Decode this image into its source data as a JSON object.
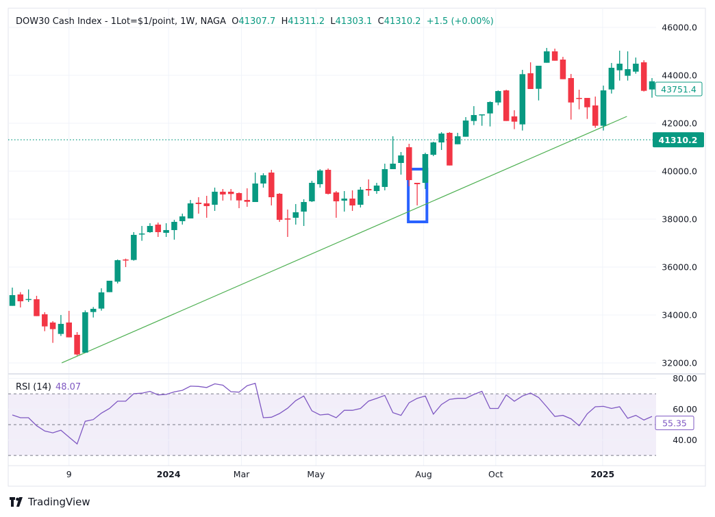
{
  "header": {
    "title": "DOW30 Cash Index - 1Lot=$1/point, 1W, NAGA",
    "o_label": "O",
    "o_value": "41307.7",
    "h_label": "H",
    "h_value": "41311.2",
    "l_label": "L",
    "l_value": "41303.1",
    "c_label": "C",
    "c_value": "41310.2",
    "change": "+1.5 (+0.00%)"
  },
  "colors": {
    "up": "#089981",
    "down": "#f23645",
    "rsi": "#7e57c2",
    "trendline": "#4caf50",
    "rectangle": "#2962ff",
    "grid": "#f0f3fa"
  },
  "branding": {
    "logo_text": "TradingView",
    "logo_icon": "tradingview-logo-icon"
  },
  "chart_data": {
    "type": "candlestick",
    "title": "DOW30 Cash Index - 1Lot=$1/point, 1W, NAGA",
    "ylim": [
      31571,
      47143
    ],
    "yticks": [
      "46000.0",
      "44000.0",
      "42000.0",
      "40000.0",
      "38000.0",
      "36000.0",
      "34000.0",
      "32000.0"
    ],
    "xticks": [
      {
        "label": "9",
        "index": 7.0,
        "bold": false
      },
      {
        "label": "2024",
        "index": 19.3,
        "bold": true
      },
      {
        "label": "Mar",
        "index": 28.3,
        "bold": false
      },
      {
        "label": "May",
        "index": 37.5,
        "bold": false
      },
      {
        "label": "Aug",
        "index": 50.8,
        "bold": false
      },
      {
        "label": "Oct",
        "index": 59.7,
        "bold": false
      },
      {
        "label": "2025",
        "index": 72.9,
        "bold": true
      }
    ],
    "grid": true,
    "current_price_line": {
      "price": 41310.2,
      "label": "41310.2"
    },
    "last_close_label": {
      "price": 43751.4,
      "label": "43751.4"
    },
    "trendline": {
      "start": {
        "index": 6.1,
        "price": 32000
      },
      "end": {
        "index": 75.9,
        "price": 42286
      }
    },
    "rectangle": {
      "start_index": 48.9,
      "end_index": 51.2,
      "top": 40086,
      "bottom": 37886
    },
    "candles": [
      [
        34381,
        35143,
        34381,
        34829
      ],
      [
        34857,
        34953,
        34315,
        34572
      ],
      [
        34629,
        35067,
        34543,
        34667
      ],
      [
        34657,
        34800,
        33953,
        33953
      ],
      [
        34029,
        34114,
        33324,
        33524
      ],
      [
        33686,
        33743,
        32838,
        33410
      ],
      [
        33210,
        34000,
        33124,
        33629
      ],
      [
        33686,
        34172,
        33067,
        33067
      ],
      [
        33172,
        33286,
        32305,
        32353
      ],
      [
        32429,
        34191,
        32429,
        34114
      ],
      [
        34124,
        34333,
        33895,
        34257
      ],
      [
        34267,
        35115,
        34181,
        34943
      ],
      [
        34953,
        35429,
        34953,
        35429
      ],
      [
        35391,
        36315,
        35315,
        36286
      ],
      [
        36315,
        36353,
        36000,
        36286
      ],
      [
        36296,
        37457,
        36267,
        37343
      ],
      [
        37362,
        37715,
        37096,
        37400
      ],
      [
        37457,
        37829,
        37429,
        37715
      ],
      [
        37772,
        37857,
        37257,
        37457
      ],
      [
        37429,
        37829,
        37257,
        37543
      ],
      [
        37543,
        37972,
        37143,
        37886
      ],
      [
        37915,
        38229,
        37772,
        38114
      ],
      [
        38029,
        38800,
        38029,
        38657
      ],
      [
        38686,
        38915,
        38229,
        38629
      ],
      [
        38657,
        38972,
        38057,
        38543
      ],
      [
        38600,
        39315,
        38343,
        39143
      ],
      [
        39143,
        39257,
        38772,
        39029
      ],
      [
        39143,
        39257,
        38781,
        39048
      ],
      [
        39086,
        39114,
        38457,
        38781
      ],
      [
        38800,
        39286,
        38514,
        38724
      ],
      [
        38714,
        39943,
        38714,
        39486
      ],
      [
        39486,
        39914,
        39314,
        39829
      ],
      [
        39943,
        40057,
        38571,
        38914
      ],
      [
        39057,
        39086,
        37886,
        37971
      ],
      [
        38029,
        38400,
        37257,
        37981
      ],
      [
        38057,
        38629,
        37771,
        38286
      ],
      [
        38314,
        38829,
        37714,
        38714
      ],
      [
        38743,
        39600,
        38714,
        39514
      ],
      [
        39457,
        40086,
        39314,
        40029
      ],
      [
        40057,
        40114,
        39029,
        39057
      ],
      [
        39114,
        39171,
        38057,
        38743
      ],
      [
        38771,
        39171,
        38314,
        38857
      ],
      [
        38857,
        39200,
        38343,
        38571
      ],
      [
        38600,
        39343,
        38486,
        39229
      ],
      [
        39257,
        39657,
        38971,
        39200
      ],
      [
        39171,
        39514,
        39057,
        39400
      ],
      [
        39343,
        40314,
        39200,
        40086
      ],
      [
        40086,
        41457,
        40086,
        40314
      ],
      [
        40343,
        40800,
        39857,
        40657
      ],
      [
        41000,
        41143,
        39371,
        39629
      ],
      [
        39514,
        39514,
        38571,
        39457
      ],
      [
        39514,
        40771,
        39257,
        40714
      ],
      [
        40686,
        41229,
        40629,
        41200
      ],
      [
        41200,
        41629,
        40886,
        41571
      ],
      [
        41600,
        41629,
        40238,
        40238
      ],
      [
        41124,
        41600,
        41124,
        41457
      ],
      [
        41438,
        42257,
        41438,
        42114
      ],
      [
        42095,
        42715,
        41924,
        42343
      ],
      [
        42352,
        42371,
        41895,
        42371
      ],
      [
        42410,
        42914,
        41867,
        42886
      ],
      [
        42867,
        43372,
        42753,
        43343
      ],
      [
        43372,
        43400,
        42095,
        42095
      ],
      [
        42286,
        42543,
        41753,
        42067
      ],
      [
        41953,
        44229,
        41696,
        44048
      ],
      [
        44086,
        44543,
        43429,
        43429
      ],
      [
        43438,
        44400,
        42953,
        44400
      ],
      [
        44524,
        45143,
        44524,
        45000
      ],
      [
        45000,
        45114,
        44610,
        44610
      ],
      [
        44657,
        44771,
        43838,
        43838
      ],
      [
        43886,
        44057,
        42153,
        42867
      ],
      [
        43057,
        43400,
        42581,
        43019
      ],
      [
        43057,
        43057,
        42181,
        42667
      ],
      [
        42743,
        43114,
        41810,
        41896
      ],
      [
        41896,
        43572,
        41696,
        43372
      ],
      [
        43410,
        44515,
        43239,
        44314
      ],
      [
        44210,
        45029,
        43781,
        44486
      ],
      [
        43981,
        45000,
        43781,
        44257
      ],
      [
        44153,
        44743,
        44067,
        44486
      ],
      [
        44543,
        44629,
        43324,
        43353
      ],
      [
        43410,
        43886,
        43067,
        43751.4
      ]
    ],
    "rsi": {
      "label": "RSI (14)",
      "value": "48.07",
      "axis_label": "55.35",
      "ylim": [
        23.4,
        82.5
      ],
      "levels": [
        70,
        50,
        30
      ],
      "yticks": [
        {
          "label": "80.00",
          "value": 80
        },
        {
          "label": "60.00",
          "value": 60
        },
        {
          "label": "40.00",
          "value": 40
        }
      ],
      "values": [
        56.3,
        54.5,
        54.5,
        49.3,
        45.9,
        44.7,
        46.4,
        41.9,
        37.5,
        52.2,
        53.3,
        57.5,
        60.5,
        65.2,
        65.2,
        70.1,
        70.4,
        71.6,
        69.3,
        69.6,
        71.3,
        72.3,
        75.0,
        74.8,
        74.1,
        76.5,
        75.6,
        71.4,
        71.1,
        75.3,
        76.8,
        54.5,
        54.8,
        57.2,
        60.7,
        65.6,
        68.6,
        59.0,
        56.3,
        56.8,
        54.5,
        59.3,
        59.3,
        60.5,
        65.3,
        67.1,
        69.0,
        57.8,
        56.0,
        64.2,
        67.1,
        68.6,
        56.8,
        63.1,
        66.4,
        67.1,
        67.1,
        69.6,
        71.6,
        60.5,
        60.5,
        69.3,
        65.2,
        68.6,
        70.5,
        67.6,
        61.6,
        55.3,
        56.0,
        53.8,
        49.3,
        57.0,
        61.6,
        61.9,
        60.5,
        61.6,
        54.1,
        56.0,
        53.0,
        55.35
      ]
    }
  }
}
